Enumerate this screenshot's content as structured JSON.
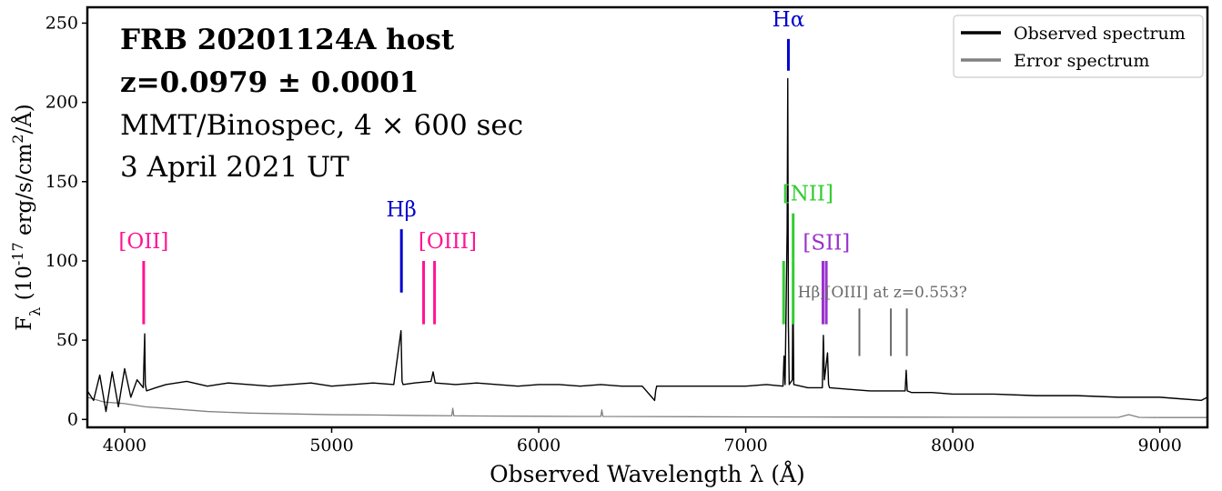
{
  "chart_data": {
    "type": "line",
    "title_lines": [
      "FRB 20201124A host",
      "z=0.0979 ± 0.0001",
      "MMT/Binospec, 4 × 600 sec",
      "3 April 2021 UT"
    ],
    "xlabel": "Observed Wavelength λ (Å)",
    "ylabel": "F_λ (10^-17 erg/s/cm^2/Å)",
    "xlim": [
      3820,
      9230
    ],
    "ylim": [
      -5,
      260
    ],
    "xticks": [
      4000,
      5000,
      6000,
      7000,
      8000,
      9000
    ],
    "yticks": [
      0,
      50,
      100,
      150,
      200,
      250
    ],
    "grid": false,
    "legend_position": "top-right",
    "series": [
      {
        "name": "Observed spectrum",
        "color": "#000000",
        "x": [
          3820,
          3850,
          3880,
          3910,
          3940,
          3970,
          4000,
          4030,
          4060,
          4090,
          4097,
          4100,
          4106,
          4150,
          4200,
          4300,
          4400,
          4500,
          4600,
          4700,
          4800,
          4900,
          5000,
          5100,
          5200,
          5300,
          5335,
          5340,
          5345,
          5400,
          5480,
          5490,
          5500,
          5600,
          5700,
          5800,
          5900,
          6000,
          6100,
          6200,
          6300,
          6400,
          6500,
          6560,
          6565,
          6570,
          6700,
          6800,
          6900,
          7000,
          7100,
          7180,
          7185,
          7190,
          7200,
          7203,
          7206,
          7210,
          7225,
          7228,
          7232,
          7300,
          7370,
          7375,
          7380,
          7395,
          7400,
          7405,
          7500,
          7600,
          7700,
          7770,
          7775,
          7780,
          7800,
          7900,
          8000,
          8200,
          8400,
          8600,
          8800,
          9000,
          9100,
          9200,
          9230
        ],
        "y": [
          18,
          12,
          28,
          5,
          30,
          8,
          32,
          14,
          25,
          20,
          54,
          22,
          18,
          20,
          22,
          24,
          21,
          23,
          22,
          21,
          22,
          23,
          21,
          22,
          23,
          22,
          56,
          24,
          22,
          23,
          24,
          30,
          23,
          22,
          23,
          22,
          21,
          22,
          22,
          21,
          22,
          21,
          21,
          12,
          18,
          21,
          21,
          21,
          21,
          21,
          22,
          21,
          40,
          22,
          120,
          215,
          60,
          22,
          25,
          90,
          22,
          20,
          20,
          53,
          25,
          42,
          22,
          20,
          19,
          18,
          18,
          18,
          31,
          18,
          17,
          17,
          16,
          16,
          15,
          15,
          14,
          14,
          13,
          12,
          14
        ]
      },
      {
        "name": "Error spectrum",
        "color": "#808080",
        "x": [
          3820,
          3900,
          4000,
          4100,
          4200,
          4400,
          4600,
          4800,
          5000,
          5200,
          5400,
          5580,
          5585,
          5590,
          5800,
          6000,
          6200,
          6300,
          6305,
          6310,
          6500,
          7000,
          7500,
          8000,
          8500,
          8800,
          8850,
          8900,
          9000,
          9230
        ],
        "y": [
          14,
          11,
          10,
          8,
          7,
          5,
          4,
          3.5,
          3,
          2.8,
          2.5,
          2.3,
          7,
          2.3,
          2.1,
          2,
          1.9,
          1.9,
          6,
          1.9,
          1.8,
          1.6,
          1.5,
          1.4,
          1.3,
          1.3,
          3,
          1.3,
          1.2,
          1.2
        ]
      }
    ],
    "line_markers": [
      {
        "label": "[OII]",
        "color": "#ff1493",
        "wavelengths": [
          4092
        ],
        "y_range": [
          60,
          100
        ],
        "label_at": 4092,
        "label_y": 108
      },
      {
        "label": "Hβ",
        "color": "#0000cd",
        "wavelengths": [
          5337
        ],
        "y_range": [
          80,
          120
        ],
        "label_at": 5337,
        "label_y": 128
      },
      {
        "label": "[OIII]",
        "color": "#ff1493",
        "wavelengths": [
          5444,
          5497
        ],
        "y_range": [
          60,
          100
        ],
        "label_at": 5560,
        "label_y": 108
      },
      {
        "label": "Hα",
        "color": "#0000cd",
        "wavelengths": [
          7206
        ],
        "y_range": [
          220,
          240
        ],
        "label_at": 7206,
        "label_y": 248
      },
      {
        "label": "[NII]",
        "color": "#32cd32",
        "wavelengths": [
          7183,
          7229
        ],
        "y_range": [
          60,
          100
        ],
        "label_at": 7300,
        "label_y": 138
      },
      {
        "label": "[SII]",
        "color": "#9932cc",
        "wavelengths": [
          7373,
          7389
        ],
        "y_range": [
          60,
          100
        ],
        "label_at": 7390,
        "label_y": 107
      },
      {
        "label": "Hβ,[OIII] at z=0.553?",
        "color": "#696969",
        "wavelengths": [
          7549,
          7701,
          7778
        ],
        "y_range": [
          40,
          70
        ],
        "label_at": 7660,
        "label_y": 77
      }
    ],
    "nii_upper_bar": {
      "wavelength": 7229,
      "y_range": [
        100,
        130
      ]
    }
  }
}
